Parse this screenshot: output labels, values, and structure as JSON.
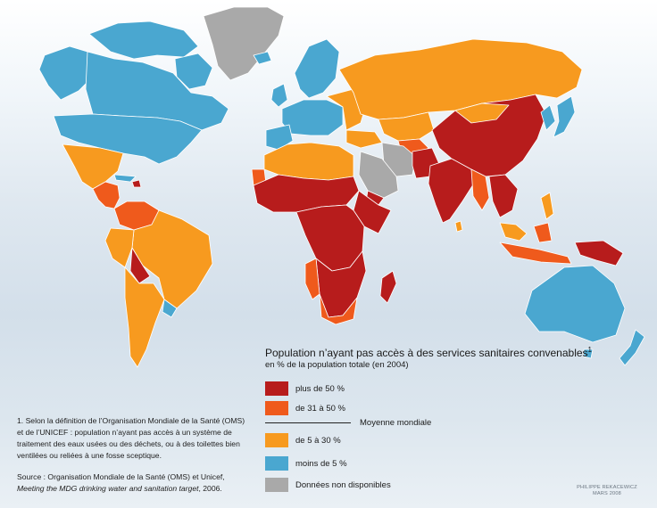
{
  "colors": {
    "over_50": "#b71c1c",
    "from_31_to_50": "#ef5a1c",
    "from_5_to_30": "#f79a1f",
    "under_5": "#4aa7d0",
    "no_data": "#a9a9a9",
    "border": "#ffffff"
  },
  "legend": {
    "title": "Population n’ayant pas accès à des services sanitaires convenables",
    "title_note": "1",
    "subtitle": "en % de la population totale (en 2004)",
    "items": [
      {
        "label": "plus de 50 %",
        "color": "#b71c1c"
      },
      {
        "label": "de 31 à 50 %",
        "color": "#ef5a1c"
      },
      {
        "label": "de 5 à 30 %",
        "color": "#f79a1f"
      },
      {
        "label": "moins de 5 %",
        "color": "#4aa7d0"
      },
      {
        "label": "Données non disponibles",
        "color": "#a9a9a9"
      }
    ],
    "world_mean": "Moyenne mondiale"
  },
  "footnote": {
    "number": "1.",
    "text": "Selon la définition de l’Organisation Mondiale de la Santé (OMS) et de l’UNICEF : population n’ayant pas accès à un système de traitement des eaux usées ou des déchets, ou à des toilettes bien ventilées ou reliées à une fosse sceptique."
  },
  "source": {
    "label": "Source : Organisation Mondiale de la Santé (OMS) et Unicef,",
    "title": "Meeting the MDG drinking water and sanitation target",
    "year": ", 2006."
  },
  "credit": {
    "author": "PHILIPPE REKACEWICZ",
    "date": "MARS 2008"
  }
}
